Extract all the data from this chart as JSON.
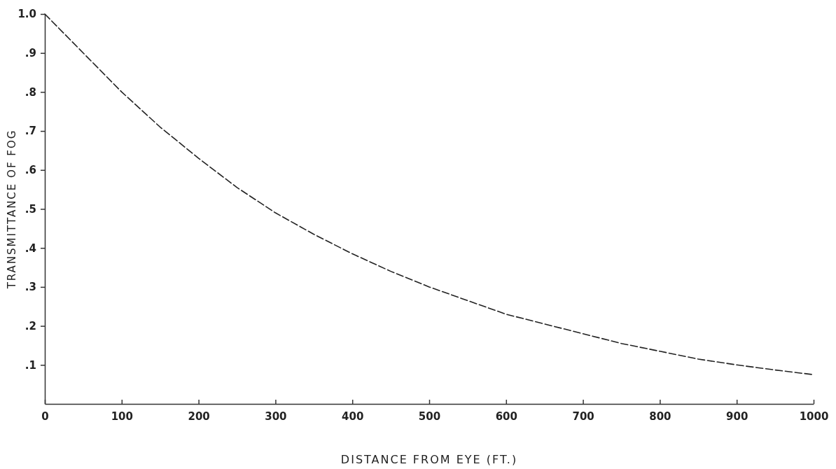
{
  "chart_data": {
    "type": "line",
    "xlabel": "DISTANCE FROM EYE (FT.)",
    "ylabel": "TRANSMITTANCE OF FOG",
    "x": [
      0,
      50,
      100,
      150,
      200,
      250,
      300,
      350,
      400,
      450,
      500,
      550,
      600,
      650,
      700,
      750,
      800,
      850,
      900,
      950,
      1000
    ],
    "series": [
      {
        "color": "#222222",
        "values": [
          1.0,
          0.9,
          0.8,
          0.71,
          0.63,
          0.555,
          0.49,
          0.435,
          0.385,
          0.34,
          0.3,
          0.265,
          0.23,
          0.205,
          0.18,
          0.155,
          0.135,
          0.115,
          0.1,
          0.087,
          0.075
        ]
      }
    ],
    "xlim": [
      0,
      1000
    ],
    "ylim": [
      0,
      1.0
    ],
    "xticks": [
      0,
      100,
      200,
      300,
      400,
      500,
      600,
      700,
      800,
      900,
      1000
    ],
    "yticks": [
      {
        "value": 0.1,
        "label": ".1"
      },
      {
        "value": 0.2,
        "label": ".2"
      },
      {
        "value": 0.3,
        "label": ".3"
      },
      {
        "value": 0.4,
        "label": ".4"
      },
      {
        "value": 0.5,
        "label": ".5"
      },
      {
        "value": 0.6,
        "label": ".6"
      },
      {
        "value": 0.7,
        "label": ".7"
      },
      {
        "value": 0.8,
        "label": ".8"
      },
      {
        "value": 0.9,
        "label": ".9"
      },
      {
        "value": 1.0,
        "label": "1.0"
      }
    ],
    "grid": false,
    "marker": "none",
    "line_style": "dashed"
  }
}
